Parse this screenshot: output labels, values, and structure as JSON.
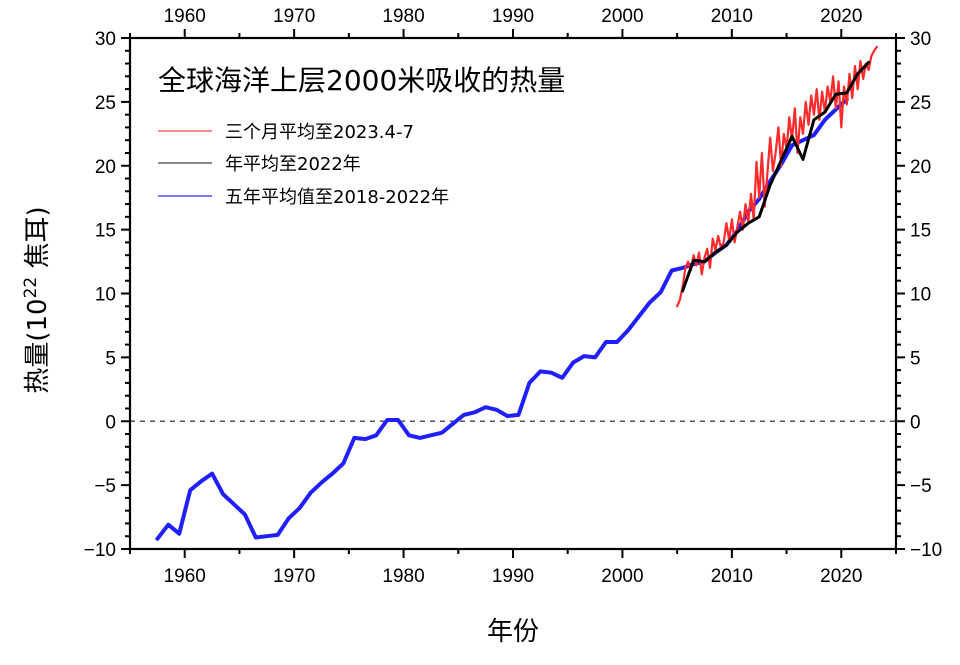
{
  "chart_data": {
    "type": "line",
    "title": "全球海洋上层2000米吸收的热量",
    "xlabel": "年份",
    "ylabel_main": "热量(10",
    "ylabel_sup": "22",
    "ylabel_tail": " 焦耳)",
    "xlim": [
      1955,
      2025
    ],
    "ylim": [
      -10,
      30
    ],
    "xticks": [
      1960,
      1970,
      1980,
      1990,
      2000,
      2010,
      2020
    ],
    "yticks": [
      -10,
      -5,
      0,
      5,
      10,
      15,
      20,
      25,
      30
    ],
    "ytick_labels": [
      "−10",
      "−5",
      "0",
      "5",
      "10",
      "15",
      "20",
      "25",
      "30"
    ],
    "zero_line": true,
    "legend_position": "top-left",
    "series": [
      {
        "name": "三个月平均至2023.4-7",
        "color": "#ff2a2a",
        "x": [
          2005.0,
          2005.25,
          2005.5,
          2005.75,
          2006.0,
          2006.25,
          2006.5,
          2006.75,
          2007.0,
          2007.25,
          2007.5,
          2007.75,
          2008.0,
          2008.25,
          2008.5,
          2008.75,
          2009.0,
          2009.25,
          2009.5,
          2009.75,
          2010.0,
          2010.25,
          2010.5,
          2010.75,
          2011.0,
          2011.25,
          2011.5,
          2011.75,
          2012.0,
          2012.25,
          2012.5,
          2012.75,
          2013.0,
          2013.25,
          2013.5,
          2013.75,
          2014.0,
          2014.25,
          2014.5,
          2014.75,
          2015.0,
          2015.25,
          2015.5,
          2015.75,
          2016.0,
          2016.25,
          2016.5,
          2016.75,
          2017.0,
          2017.25,
          2017.5,
          2017.75,
          2018.0,
          2018.25,
          2018.5,
          2018.75,
          2019.0,
          2019.25,
          2019.5,
          2019.75,
          2020.0,
          2020.25,
          2020.5,
          2020.75,
          2021.0,
          2021.25,
          2021.5,
          2021.75,
          2022.0,
          2022.25,
          2022.5,
          2022.75,
          2023.0,
          2023.25
        ],
        "values": [
          9.0,
          9.5,
          10.5,
          12.0,
          12.5,
          11.8,
          13.0,
          12.2,
          13.2,
          11.5,
          12.8,
          13.5,
          12.0,
          14.3,
          13.4,
          14.5,
          13.6,
          14.0,
          15.5,
          14.2,
          15.8,
          14.0,
          15.2,
          16.4,
          15.0,
          17.0,
          15.6,
          17.8,
          15.8,
          20.3,
          17.5,
          21.0,
          16.8,
          19.4,
          22.2,
          19.6,
          21.0,
          23.0,
          20.0,
          22.5,
          21.3,
          23.8,
          22.0,
          24.5,
          21.0,
          23.8,
          22.5,
          25.0,
          23.2,
          25.5,
          24.0,
          26.0,
          23.6,
          25.8,
          24.2,
          26.2,
          25.0,
          27.0,
          24.5,
          26.6,
          23.0,
          26.2,
          24.8,
          27.2,
          25.3,
          27.8,
          26.0,
          28.2,
          26.8,
          28.0,
          27.5,
          28.6,
          29.0,
          29.3
        ]
      },
      {
        "name": "年平均至2022年",
        "color": "#000000",
        "x": [
          2005.5,
          2006.5,
          2007.5,
          2008.5,
          2009.5,
          2010.5,
          2011.5,
          2012.5,
          2013.5,
          2014.5,
          2015.5,
          2016.5,
          2017.5,
          2018.5,
          2019.5,
          2020.5,
          2021.5,
          2022.5
        ],
        "values": [
          10.2,
          12.6,
          12.5,
          13.2,
          13.8,
          14.8,
          15.5,
          16.0,
          18.5,
          20.4,
          22.3,
          20.5,
          23.6,
          24.2,
          25.6,
          25.7,
          27.2,
          28.1
        ]
      },
      {
        "name": "五年平均值至2018-2022年",
        "color": "#1f1fff",
        "x": [
          1957.5,
          1958.5,
          1959.5,
          1960.5,
          1961.5,
          1962.5,
          1963.5,
          1964.5,
          1965.5,
          1966.5,
          1967.5,
          1968.5,
          1969.5,
          1970.5,
          1971.5,
          1972.5,
          1973.5,
          1974.5,
          1975.5,
          1976.5,
          1977.5,
          1978.5,
          1979.5,
          1980.5,
          1981.5,
          1982.5,
          1983.5,
          1984.5,
          1985.5,
          1986.5,
          1987.5,
          1988.5,
          1989.5,
          1990.5,
          1991.5,
          1992.5,
          1993.5,
          1994.5,
          1995.5,
          1996.5,
          1997.5,
          1998.5,
          1999.5,
          2000.5,
          2001.5,
          2002.5,
          2003.5,
          2004.5,
          2005.5,
          2006.5,
          2007.5,
          2008.5,
          2009.5,
          2010.5,
          2011.5,
          2012.5,
          2013.5,
          2014.5,
          2015.5,
          2016.5,
          2017.5,
          2018.5,
          2019.5,
          2020.5
        ],
        "values": [
          -9.2,
          -8.1,
          -8.8,
          -5.4,
          -4.7,
          -4.1,
          -5.7,
          -6.5,
          -7.3,
          -9.1,
          -9.0,
          -8.9,
          -7.6,
          -6.8,
          -5.6,
          -4.8,
          -4.1,
          -3.3,
          -1.3,
          -1.4,
          -1.1,
          0.1,
          0.1,
          -1.1,
          -1.3,
          -1.1,
          -0.9,
          -0.2,
          0.5,
          0.7,
          1.1,
          0.9,
          0.4,
          0.5,
          3.0,
          3.9,
          3.8,
          3.4,
          4.6,
          5.1,
          5.0,
          6.2,
          6.2,
          7.1,
          8.2,
          9.3,
          10.1,
          11.8,
          12.0,
          12.3,
          12.5,
          13.2,
          13.8,
          14.9,
          16.4,
          17.4,
          18.8,
          20.1,
          21.6,
          22.0,
          22.4,
          23.6,
          24.4,
          25.2
        ]
      }
    ]
  }
}
